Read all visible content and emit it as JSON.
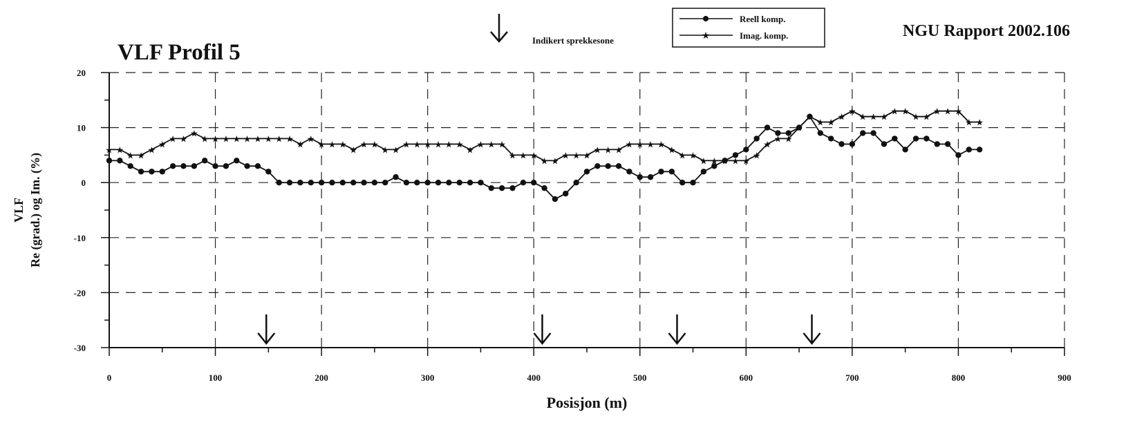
{
  "header": {
    "title": "VLF Profil 5",
    "report": "NGU Rapport 2002.106",
    "arrow_legend": "Indikert sprekkesone"
  },
  "legend": {
    "items": [
      {
        "label": "Reell komp.",
        "marker": "circle"
      },
      {
        "label": "Imag. komp.",
        "marker": "star"
      }
    ]
  },
  "chart_data": {
    "type": "line",
    "title": "VLF Profil 5",
    "xlabel": "Posisjon (m)",
    "ylabel_line1": "VLF",
    "ylabel_line2": "Re (grad.) og Im. (%)",
    "xlim": [
      0,
      900
    ],
    "ylim": [
      -30,
      20
    ],
    "x_ticks": [
      0,
      100,
      200,
      300,
      400,
      500,
      600,
      700,
      800,
      900
    ],
    "y_ticks": [
      20,
      10,
      0,
      -10,
      -20,
      -30
    ],
    "grid": true,
    "legend_position": "top-center",
    "x": [
      0,
      10,
      20,
      30,
      40,
      50,
      60,
      70,
      80,
      90,
      100,
      110,
      120,
      130,
      140,
      150,
      160,
      170,
      180,
      190,
      200,
      210,
      220,
      230,
      240,
      250,
      260,
      270,
      280,
      290,
      300,
      310,
      320,
      330,
      340,
      350,
      360,
      370,
      380,
      390,
      400,
      410,
      420,
      430,
      440,
      450,
      460,
      470,
      480,
      490,
      500,
      510,
      520,
      530,
      540,
      550,
      560,
      570,
      580,
      590,
      600,
      610,
      620,
      630,
      640,
      650,
      660,
      670,
      680,
      690,
      700,
      710,
      720,
      730,
      740,
      750,
      760,
      770,
      780,
      790,
      800,
      810,
      820
    ],
    "series": [
      {
        "name": "Reell komp.",
        "marker": "circle",
        "values": [
          4,
          4,
          3,
          2,
          2,
          2,
          3,
          3,
          3,
          4,
          3,
          3,
          4,
          3,
          3,
          2,
          0,
          0,
          0,
          0,
          0,
          0,
          0,
          0,
          0,
          0,
          0,
          1,
          0,
          0,
          0,
          0,
          0,
          0,
          0,
          0,
          -1,
          -1,
          -1,
          0,
          0,
          -1,
          -3,
          -2,
          0,
          2,
          3,
          3,
          3,
          2,
          1,
          1,
          2,
          2,
          0,
          0,
          2,
          3,
          4,
          5,
          6,
          8,
          10,
          9,
          9,
          10,
          12,
          9,
          8,
          7,
          7,
          9,
          9,
          7,
          8,
          6,
          8,
          8,
          7,
          7,
          5,
          6,
          6
        ]
      },
      {
        "name": "Imag. komp.",
        "marker": "star",
        "values": [
          6,
          6,
          5,
          5,
          6,
          7,
          8,
          8,
          9,
          8,
          8,
          8,
          8,
          8,
          8,
          8,
          8,
          8,
          7,
          8,
          7,
          7,
          7,
          6,
          7,
          7,
          6,
          6,
          7,
          7,
          7,
          7,
          7,
          7,
          6,
          7,
          7,
          7,
          5,
          5,
          5,
          4,
          4,
          5,
          5,
          5,
          6,
          6,
          6,
          7,
          7,
          7,
          7,
          6,
          5,
          5,
          4,
          4,
          4,
          4,
          4,
          5,
          7,
          8,
          8,
          10,
          12,
          11,
          11,
          12,
          13,
          12,
          12,
          12,
          13,
          13,
          12,
          12,
          13,
          13,
          13,
          11,
          11
        ]
      }
    ],
    "indicated_zones": [
      148,
      408,
      535,
      662
    ]
  }
}
